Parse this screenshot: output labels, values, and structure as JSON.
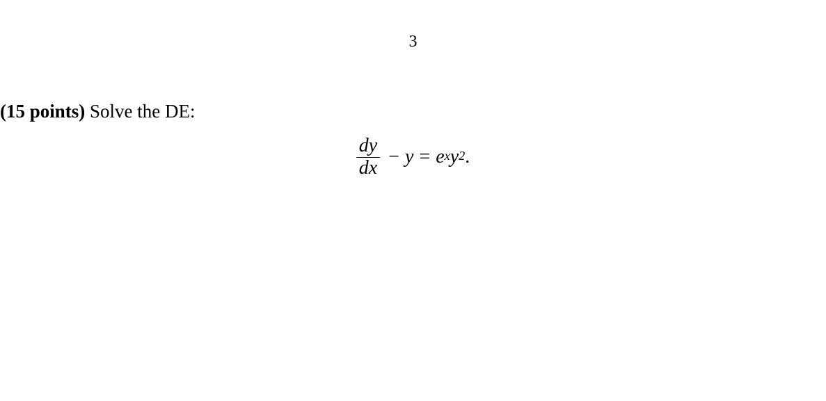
{
  "page": {
    "number": "3",
    "background_color": "#ffffff",
    "text_color": "#000000",
    "font_family": "Times New Roman"
  },
  "problem": {
    "points_label": "(15 points)",
    "instruction": " Solve the DE:",
    "points_fontsize": 27,
    "points_fontweight": "bold"
  },
  "equation": {
    "fraction_numerator": "dy",
    "fraction_denominator": "dx",
    "minus": "−",
    "term1": "y",
    "equals": "=",
    "term2_base1": "e",
    "term2_exp1": "x",
    "term2_base2": "y",
    "term2_exp2": "2",
    "period": ".",
    "fontsize": 28,
    "font_style": "italic"
  }
}
